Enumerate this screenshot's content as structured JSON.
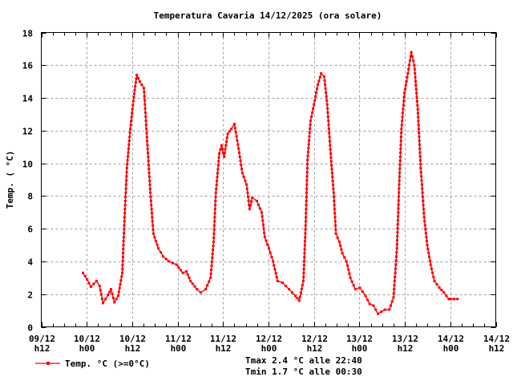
{
  "chart_data": {
    "type": "line",
    "title": "Temperatura Cavaria 14/12/2025 (ora solare)",
    "xlabel": "",
    "ylabel": "Temp. ( °C)",
    "ylim": [
      0,
      18
    ],
    "yticks": [
      0,
      2,
      4,
      6,
      8,
      10,
      12,
      14,
      16,
      18
    ],
    "xlim_hours": [
      0,
      120
    ],
    "x_unit": "hours since 09/12 h12",
    "xticks": [
      {
        "hour": 0,
        "line1": "09/12",
        "line2": "h12"
      },
      {
        "hour": 12,
        "line1": "10/12",
        "line2": "h00"
      },
      {
        "hour": 24,
        "line1": "10/12",
        "line2": "h12"
      },
      {
        "hour": 36,
        "line1": "11/12",
        "line2": "h00"
      },
      {
        "hour": 48,
        "line1": "11/12",
        "line2": "h12"
      },
      {
        "hour": 60,
        "line1": "12/12",
        "line2": "h00"
      },
      {
        "hour": 72,
        "line1": "12/12",
        "line2": "h12"
      },
      {
        "hour": 84,
        "line1": "13/12",
        "line2": "h00"
      },
      {
        "hour": 96,
        "line1": "13/12",
        "line2": "h12"
      },
      {
        "hour": 108,
        "line1": "14/12",
        "line2": "h00"
      },
      {
        "hour": 120,
        "line1": "14/12",
        "line2": "h12"
      }
    ],
    "minor_tick_hours": 3,
    "grid": true,
    "legend_position": "bottom-left",
    "series": [
      {
        "name": "Temp. °C (>=0°C)",
        "color": "#ff0000",
        "x": [
          11.0,
          12.1,
          13.1,
          14.6,
          15.4,
          16.3,
          17.6,
          18.4,
          19.3,
          20.3,
          21.4,
          22.0,
          22.6,
          23.5,
          24.3,
          25.2,
          26.0,
          27.1,
          27.9,
          28.8,
          29.6,
          30.9,
          32.2,
          33.7,
          35.7,
          37.4,
          38.3,
          39.4,
          41.1,
          42.1,
          43.4,
          44.7,
          45.5,
          46.1,
          47.0,
          47.6,
          48.3,
          49.2,
          50.2,
          51.0,
          52.1,
          53.1,
          54.2,
          55.0,
          55.7,
          56.9,
          58.2,
          59.0,
          60.1,
          61.2,
          62.4,
          63.7,
          65.4,
          67.1,
          68.1,
          69.2,
          69.8,
          70.3,
          71.1,
          72.0,
          73.0,
          73.9,
          74.7,
          75.5,
          76.4,
          77.2,
          77.8,
          78.7,
          79.5,
          80.6,
          81.6,
          82.9,
          84.1,
          85.6,
          86.7,
          87.7,
          88.9,
          90.7,
          91.9,
          93.0,
          93.9,
          94.5,
          95.1,
          95.9,
          96.8,
          97.7,
          98.5,
          99.4,
          100.2,
          101.1,
          101.9,
          102.8,
          103.8,
          105.1,
          106.3,
          107.6,
          108.1,
          109.9
        ],
        "y": [
          3.3,
          2.9,
          2.45,
          2.8,
          2.5,
          1.45,
          1.95,
          2.3,
          1.5,
          1.9,
          3.3,
          6.7,
          9.7,
          12.1,
          13.8,
          15.4,
          15.0,
          14.6,
          11.6,
          8.2,
          5.7,
          4.8,
          4.3,
          4.0,
          3.8,
          3.3,
          3.4,
          2.8,
          2.3,
          2.1,
          2.3,
          3.0,
          5.2,
          8.2,
          10.6,
          11.1,
          10.4,
          11.8,
          12.1,
          12.4,
          10.9,
          9.4,
          8.7,
          7.2,
          7.9,
          7.7,
          7.0,
          5.5,
          4.8,
          4.0,
          2.8,
          2.7,
          2.3,
          1.9,
          1.6,
          2.8,
          6.2,
          10.2,
          12.6,
          13.6,
          14.8,
          15.5,
          15.3,
          13.6,
          10.6,
          8.2,
          5.7,
          5.2,
          4.5,
          4.0,
          3.0,
          2.3,
          2.4,
          1.9,
          1.4,
          1.3,
          0.8,
          1.05,
          1.05,
          1.8,
          4.8,
          8.7,
          12.1,
          14.3,
          15.5,
          16.8,
          16.0,
          13.3,
          9.7,
          6.7,
          5.0,
          3.8,
          2.8,
          2.4,
          2.1,
          1.7,
          1.7,
          1.7
        ]
      }
    ]
  },
  "legend": {
    "label": "Temp. °C (>=0°C)"
  },
  "stats": {
    "tmax": "Tmax 2.4 °C alle 22:40",
    "tmin": "Tmin 1.7 °C alle 00:30"
  },
  "colors": {
    "series": "#ff0000",
    "grid": "#a0a0a0",
    "axis": "#000000"
  }
}
